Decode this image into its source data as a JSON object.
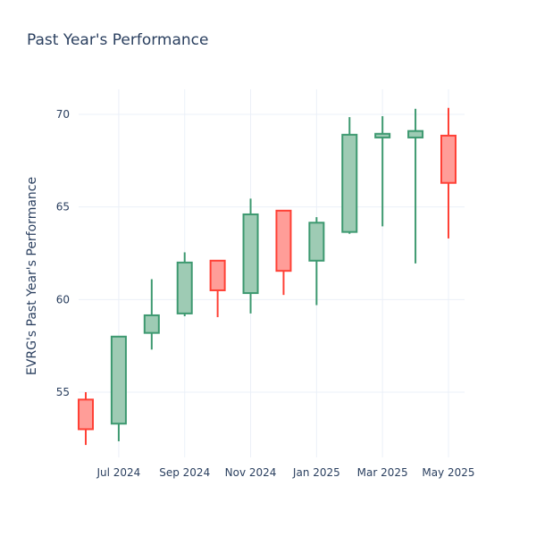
{
  "chart_data": {
    "type": "candlestick",
    "title": "Past Year's Performance",
    "xlabel": "",
    "ylabel": "EVRG's Past Year's Performance",
    "ylim": [
      51.3,
      71.3
    ],
    "yticks": [
      55,
      60,
      65,
      70
    ],
    "xticks": [
      {
        "month": 1,
        "label": "Jul 2024"
      },
      {
        "month": 3,
        "label": "Sep 2024"
      },
      {
        "month": 5,
        "label": "Nov 2024"
      },
      {
        "month": 7,
        "label": "Jan 2025"
      },
      {
        "month": 9,
        "label": "Mar 2025"
      },
      {
        "month": 11,
        "label": "May 2025"
      }
    ],
    "grid": true,
    "colors": {
      "increasing": "#3d9970",
      "decreasing": "#ff4136",
      "increasing_fill": "#9ecbb4",
      "decreasing_fill": "#ff9d98",
      "grid": "#ebf0f8",
      "text": "#2a3f5f"
    },
    "candles": [
      {
        "date": "Jun 2024",
        "open": 54.6,
        "high": 55.0,
        "low": 52.15,
        "close": 53.0
      },
      {
        "date": "Jul 2024",
        "open": 53.3,
        "high": 58.0,
        "low": 52.35,
        "close": 58.0
      },
      {
        "date": "Aug 2024",
        "open": 58.2,
        "high": 61.1,
        "low": 57.3,
        "close": 59.15
      },
      {
        "date": "Sep 2024",
        "open": 59.25,
        "high": 62.55,
        "low": 59.1,
        "close": 62.0
      },
      {
        "date": "Oct 2024",
        "open": 62.1,
        "high": 62.1,
        "low": 59.05,
        "close": 60.5
      },
      {
        "date": "Nov 2024",
        "open": 60.35,
        "high": 65.45,
        "low": 59.25,
        "close": 64.6
      },
      {
        "date": "Dec 2024",
        "open": 64.8,
        "high": 64.8,
        "low": 60.25,
        "close": 61.55
      },
      {
        "date": "Jan 2025",
        "open": 62.1,
        "high": 64.45,
        "low": 59.7,
        "close": 64.15
      },
      {
        "date": "Feb 2025",
        "open": 63.65,
        "high": 69.85,
        "low": 63.55,
        "close": 68.9
      },
      {
        "date": "Mar 2025",
        "open": 68.75,
        "high": 69.9,
        "low": 63.95,
        "close": 68.95
      },
      {
        "date": "Apr 2025",
        "open": 68.75,
        "high": 70.3,
        "low": 61.95,
        "close": 69.1
      },
      {
        "date": "May 2025",
        "open": 68.85,
        "high": 70.35,
        "low": 63.3,
        "close": 66.3
      }
    ]
  }
}
